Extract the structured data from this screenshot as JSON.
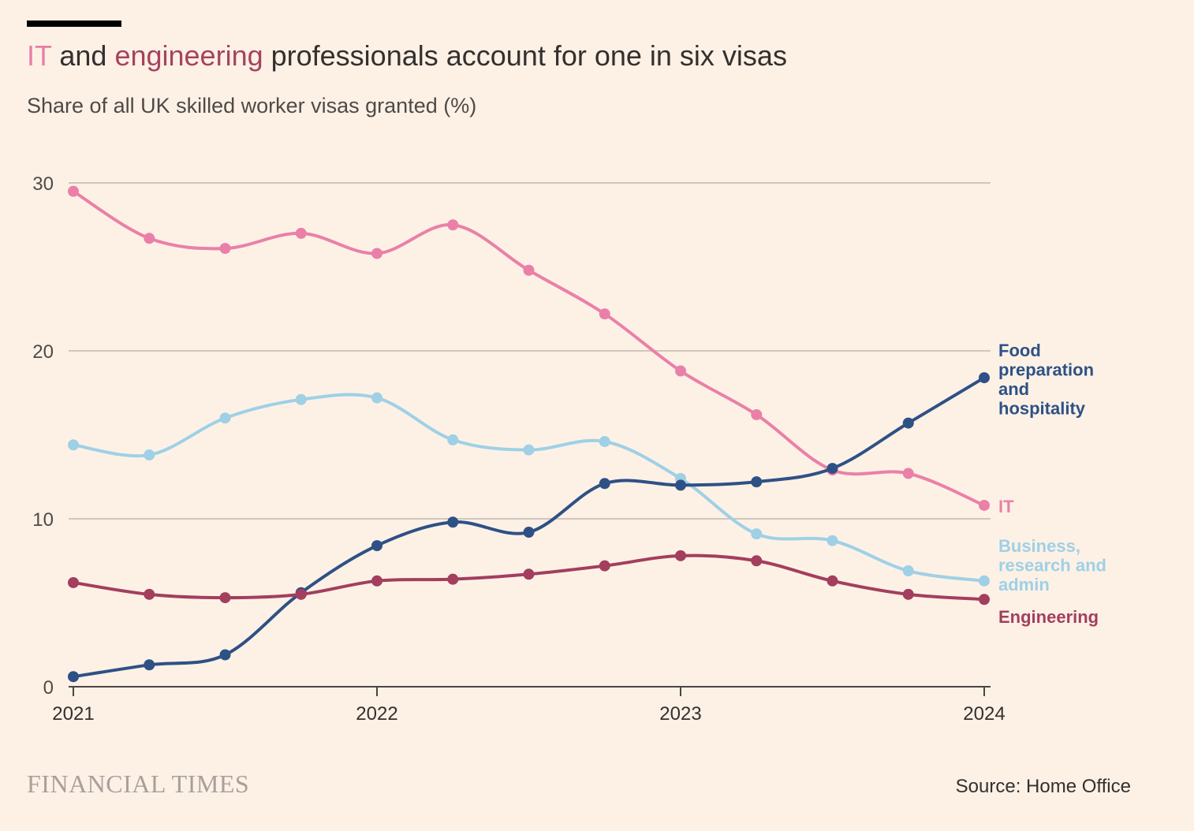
{
  "title": {
    "it": "IT",
    "and": "and",
    "engineering": "engineering",
    "rest": "professionals account for one in six visas"
  },
  "subtitle": "Share of all UK skilled worker visas granted (%)",
  "brand": "FINANCIAL TIMES",
  "source": "Source: Home Office",
  "chart_data": {
    "type": "line",
    "title": "IT and engineering professionals account for one in six visas",
    "subtitle": "Share of all UK skilled worker visas granted (%)",
    "x": [
      2021.0,
      2021.25,
      2021.5,
      2021.75,
      2022.0,
      2022.25,
      2022.5,
      2022.75,
      2023.0,
      2023.25,
      2023.5,
      2023.75,
      2024.0
    ],
    "xticks": [
      2021,
      2022,
      2023,
      2024
    ],
    "xtick_labels": [
      "2021",
      "2022",
      "2023",
      "2024"
    ],
    "xlim": [
      2021,
      2024
    ],
    "ylim": [
      0,
      30
    ],
    "yticks": [
      0,
      10,
      20,
      30
    ],
    "ytick_labels": [
      "0",
      "10",
      "20",
      "30"
    ],
    "grid": true,
    "legend": "direct labels at line ends (right)",
    "series": [
      {
        "name": "IT",
        "label_lines": [
          "IT"
        ],
        "color": "#ea80a8",
        "values": [
          29.5,
          26.7,
          26.1,
          27.0,
          25.8,
          27.5,
          24.8,
          22.2,
          18.8,
          16.2,
          12.9,
          12.7,
          10.8
        ]
      },
      {
        "name": "Business, research and admin",
        "label_lines": [
          "Business,",
          "research and",
          "admin"
        ],
        "color": "#9fd0e6",
        "values": [
          14.4,
          13.8,
          16.0,
          17.1,
          17.2,
          14.7,
          14.1,
          14.6,
          12.4,
          9.1,
          8.7,
          6.9,
          6.3
        ]
      },
      {
        "name": "Food preparation and hospitality",
        "label_lines": [
          "Food",
          "preparation",
          "and",
          "hospitality"
        ],
        "color": "#2e5185",
        "values": [
          0.6,
          1.3,
          1.9,
          5.6,
          8.4,
          9.8,
          9.2,
          12.1,
          12.0,
          12.2,
          13.0,
          15.7,
          18.4
        ]
      },
      {
        "name": "Engineering",
        "label_lines": [
          "Engineering"
        ],
        "color": "#a33e5e",
        "values": [
          6.2,
          5.5,
          5.3,
          5.5,
          6.3,
          6.4,
          6.7,
          7.2,
          7.8,
          7.5,
          6.3,
          5.5,
          5.2
        ]
      }
    ]
  }
}
